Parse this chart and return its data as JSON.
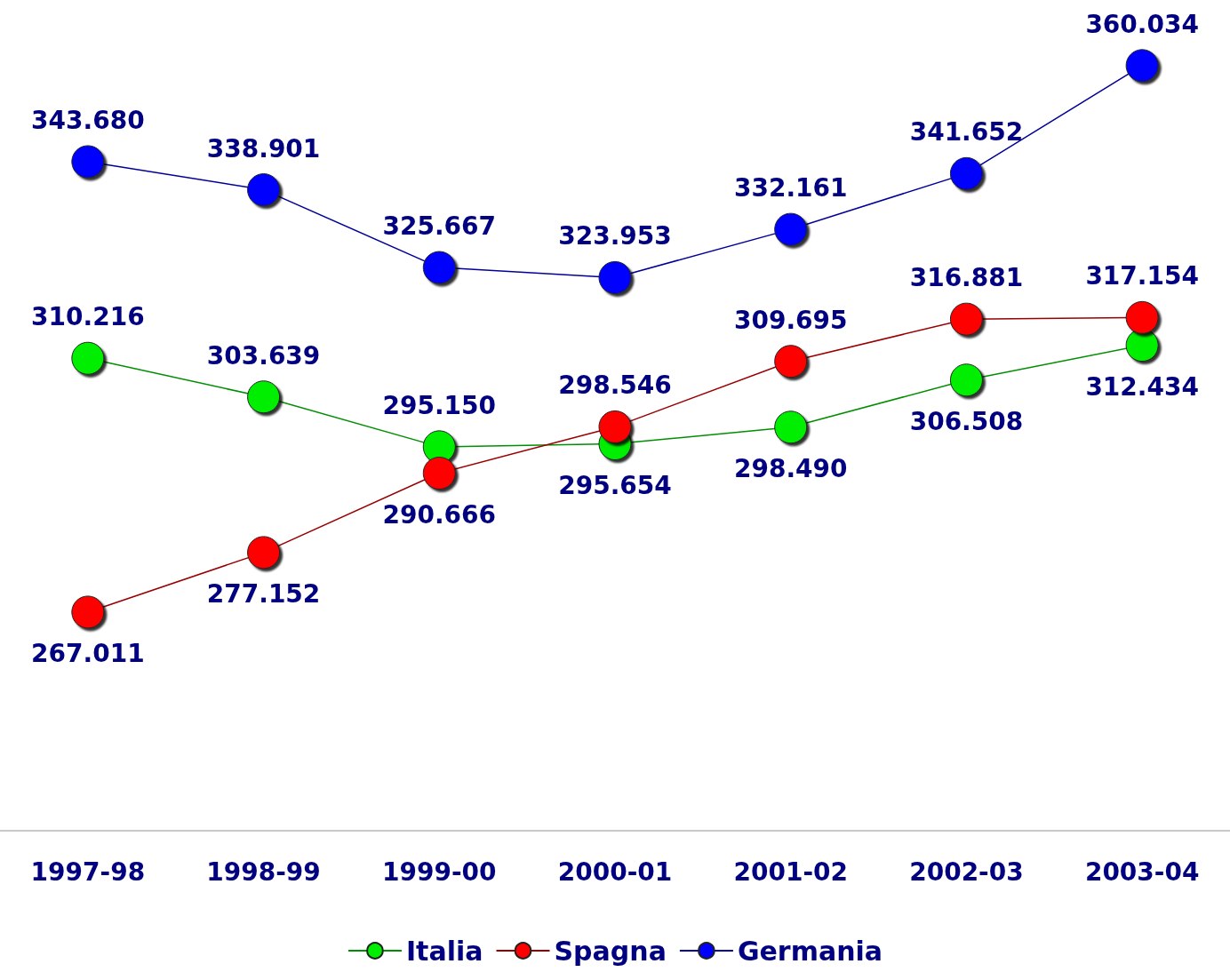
{
  "chart_data": {
    "type": "line",
    "categories": [
      "1997-98",
      "1998-99",
      "1999-00",
      "2000-01",
      "2001-02",
      "2002-03",
      "2003-04"
    ],
    "series": [
      {
        "name": "Italia",
        "color": "#00ee00",
        "values": [
          310.216,
          303.639,
          295.15,
          295.654,
          298.49,
          306.508,
          312.434
        ],
        "value_labels": [
          "310.216",
          "303.639",
          "295.150",
          "295.654",
          "298.490",
          "306.508",
          "312.434"
        ]
      },
      {
        "name": "Spagna",
        "color": "#ff0000",
        "values": [
          267.011,
          277.152,
          290.666,
          298.546,
          309.695,
          316.881,
          317.154
        ],
        "value_labels": [
          "267.011",
          "277.152",
          "290.666",
          "298.546",
          "309.695",
          "316.881",
          "317.154"
        ]
      },
      {
        "name": "Germania",
        "color": "#0000ff",
        "values": [
          343.68,
          338.901,
          325.667,
          323.953,
          332.161,
          341.652,
          360.034
        ],
        "value_labels": [
          "343.680",
          "338.901",
          "325.667",
          "323.953",
          "332.161",
          "341.652",
          "360.034"
        ]
      }
    ],
    "tick_labels": "x",
    "grid": false,
    "legend": "bottom",
    "marker": "circle",
    "line_style": "solid"
  }
}
